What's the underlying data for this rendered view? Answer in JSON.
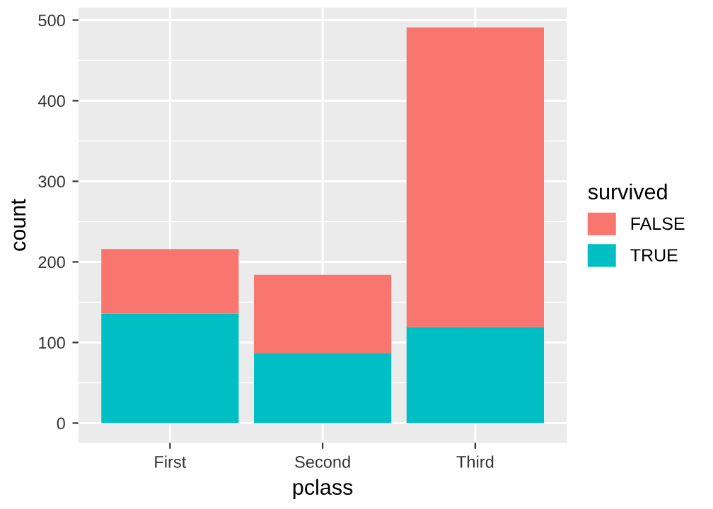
{
  "chart_data": {
    "type": "bar",
    "xlabel": "pclass",
    "ylabel": "count",
    "legend_title": "survived",
    "categories": [
      "First",
      "Second",
      "Third"
    ],
    "stacked": true,
    "series": [
      {
        "name": "TRUE",
        "color": "#00bfc4",
        "values": [
          136,
          87,
          119
        ]
      },
      {
        "name": "FALSE",
        "color": "#f8766d",
        "values": [
          80,
          97,
          372
        ]
      }
    ],
    "ylim": [
      -24.5,
      515.5
    ],
    "yticks": [
      0,
      100,
      200,
      300,
      400,
      500
    ],
    "grid": true,
    "legend": "right"
  }
}
